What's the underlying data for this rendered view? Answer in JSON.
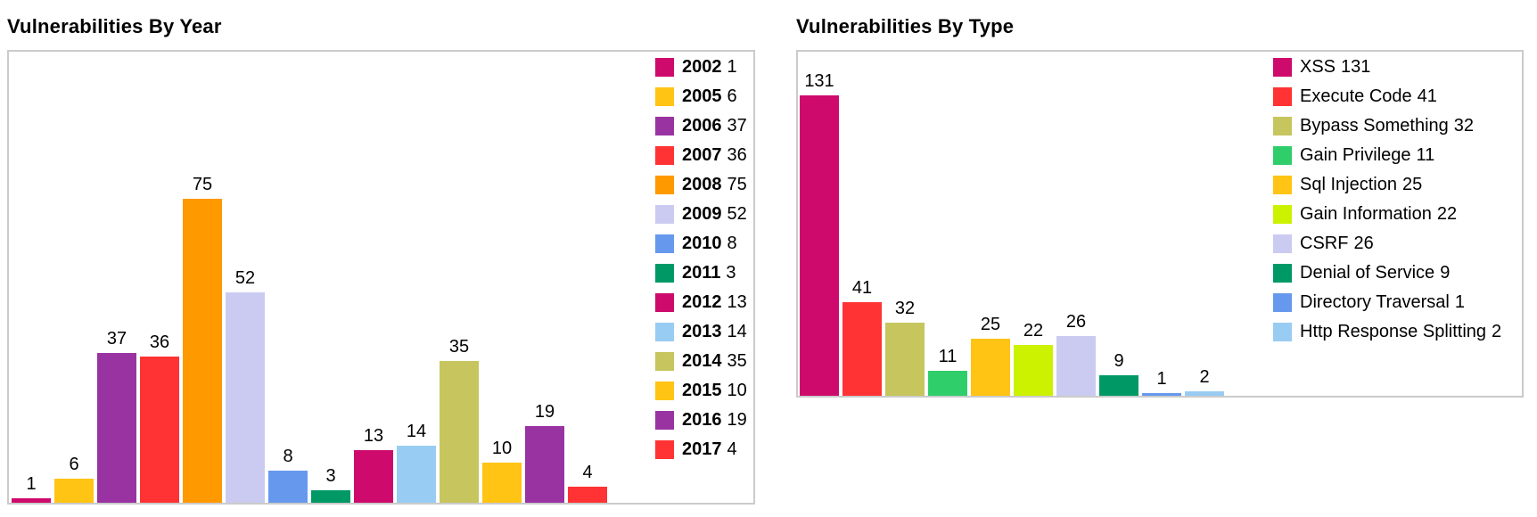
{
  "chart_data": [
    {
      "type": "bar",
      "title": "Vulnerabilities By Year",
      "categories": [
        "2002",
        "2005",
        "2006",
        "2007",
        "2008",
        "2009",
        "2010",
        "2011",
        "2012",
        "2013",
        "2014",
        "2015",
        "2016",
        "2017"
      ],
      "values": [
        1,
        6,
        37,
        36,
        75,
        52,
        8,
        3,
        13,
        14,
        35,
        10,
        19,
        4
      ],
      "colors": [
        "#CE0A6C",
        "#FFC414",
        "#9933A2",
        "#FF3333",
        "#FF9900",
        "#CBCBF2",
        "#6699EE",
        "#009966",
        "#CE0A6C",
        "#99CCF2",
        "#C6C55E",
        "#FFC414",
        "#9933A2",
        "#FF3333"
      ],
      "bar_value_labels": [
        "1",
        "6",
        "37",
        "36",
        "75",
        "52",
        "8",
        "3",
        "13",
        "14",
        "35",
        "10",
        "19",
        "4"
      ],
      "legend_entries": [
        "2002 1",
        "2005 6",
        "2006 37",
        "2007 36",
        "2008 75",
        "2009 52",
        "2010 8",
        "2011 3",
        "2012 13",
        "2013 14",
        "2014 35",
        "2015 10",
        "2016 19",
        "2017 4"
      ],
      "legend_position": "right-inside",
      "legend_category_bold": true,
      "xlabel": "",
      "ylabel": "",
      "ylim": [
        0,
        75
      ],
      "grid": false,
      "axis_ticks_shown": false
    },
    {
      "type": "bar",
      "title": "Vulnerabilities By Type",
      "categories": [
        "XSS",
        "Execute Code",
        "Bypass Something",
        "Gain Privilege",
        "Sql Injection",
        "Gain Information",
        "CSRF",
        "Denial of Service",
        "Directory Traversal",
        "Http Response Splitting"
      ],
      "values": [
        131,
        41,
        32,
        11,
        25,
        22,
        26,
        9,
        1,
        2
      ],
      "colors": [
        "#CE0A6C",
        "#FF3333",
        "#C6C55E",
        "#30CE6B",
        "#FFC414",
        "#CCF200",
        "#CBCBF2",
        "#009966",
        "#6699EE",
        "#99CCF2"
      ],
      "bar_value_labels": [
        "131",
        "41",
        "32",
        "11",
        "25",
        "22",
        "26",
        "9",
        "1",
        "2"
      ],
      "legend_entries": [
        "XSS 131",
        "Execute Code 41",
        "Bypass Something 32",
        "Gain Privilege 11",
        "Sql Injection 25",
        "Gain Information 22",
        "CSRF 26",
        "Denial of Service 9",
        "Directory Traversal 1",
        "Http Response Splitting 2"
      ],
      "legend_position": "right-inside",
      "legend_category_bold": false,
      "xlabel": "",
      "ylabel": "",
      "ylim": [
        0,
        131
      ],
      "grid": false,
      "axis_ticks_shown": false
    }
  ]
}
